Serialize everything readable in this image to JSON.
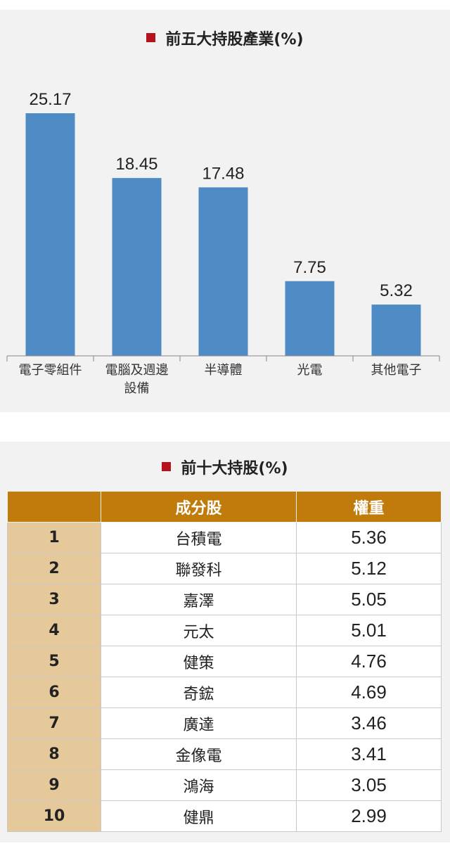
{
  "industry_panel": {
    "title": "前五大持股產業(%)"
  },
  "holdings_panel": {
    "title": "前十大持股(%)",
    "columns": [
      "",
      "成分股",
      "權重"
    ],
    "rows": [
      {
        "rank": "1",
        "name": "台積電",
        "weight": "5.36"
      },
      {
        "rank": "2",
        "name": "聯發科",
        "weight": "5.12"
      },
      {
        "rank": "3",
        "name": "嘉澤",
        "weight": "5.05"
      },
      {
        "rank": "4",
        "name": "元太",
        "weight": "5.01"
      },
      {
        "rank": "5",
        "name": "健策",
        "weight": "4.76"
      },
      {
        "rank": "6",
        "name": "奇鋐",
        "weight": "4.69"
      },
      {
        "rank": "7",
        "name": "廣達",
        "weight": "3.46"
      },
      {
        "rank": "8",
        "name": "金像電",
        "weight": "3.41"
      },
      {
        "rank": "9",
        "name": "鴻海",
        "weight": "3.05"
      },
      {
        "rank": "10",
        "name": "健鼎",
        "weight": "2.99"
      }
    ]
  },
  "colors": {
    "bar": "#4f8bc4",
    "title_square": "#b5121b",
    "table_header": "#c07b0a",
    "rank_cell": "#e6c99a",
    "panel_background": "#f2f2f2"
  },
  "chart_data": {
    "type": "bar",
    "title": "前五大持股產業(%)",
    "categories": [
      [
        "電子零組件"
      ],
      [
        "電腦及週邊",
        "設備"
      ],
      [
        "半導體"
      ],
      [
        "光電"
      ],
      [
        "其他電子"
      ]
    ],
    "values": [
      25.17,
      18.45,
      17.48,
      7.75,
      5.32
    ],
    "value_labels": [
      "25.17",
      "18.45",
      "17.48",
      "7.75",
      "5.32"
    ],
    "xlabel": "",
    "ylabel": "",
    "ylim": [
      0,
      25.17
    ],
    "grid": false
  }
}
